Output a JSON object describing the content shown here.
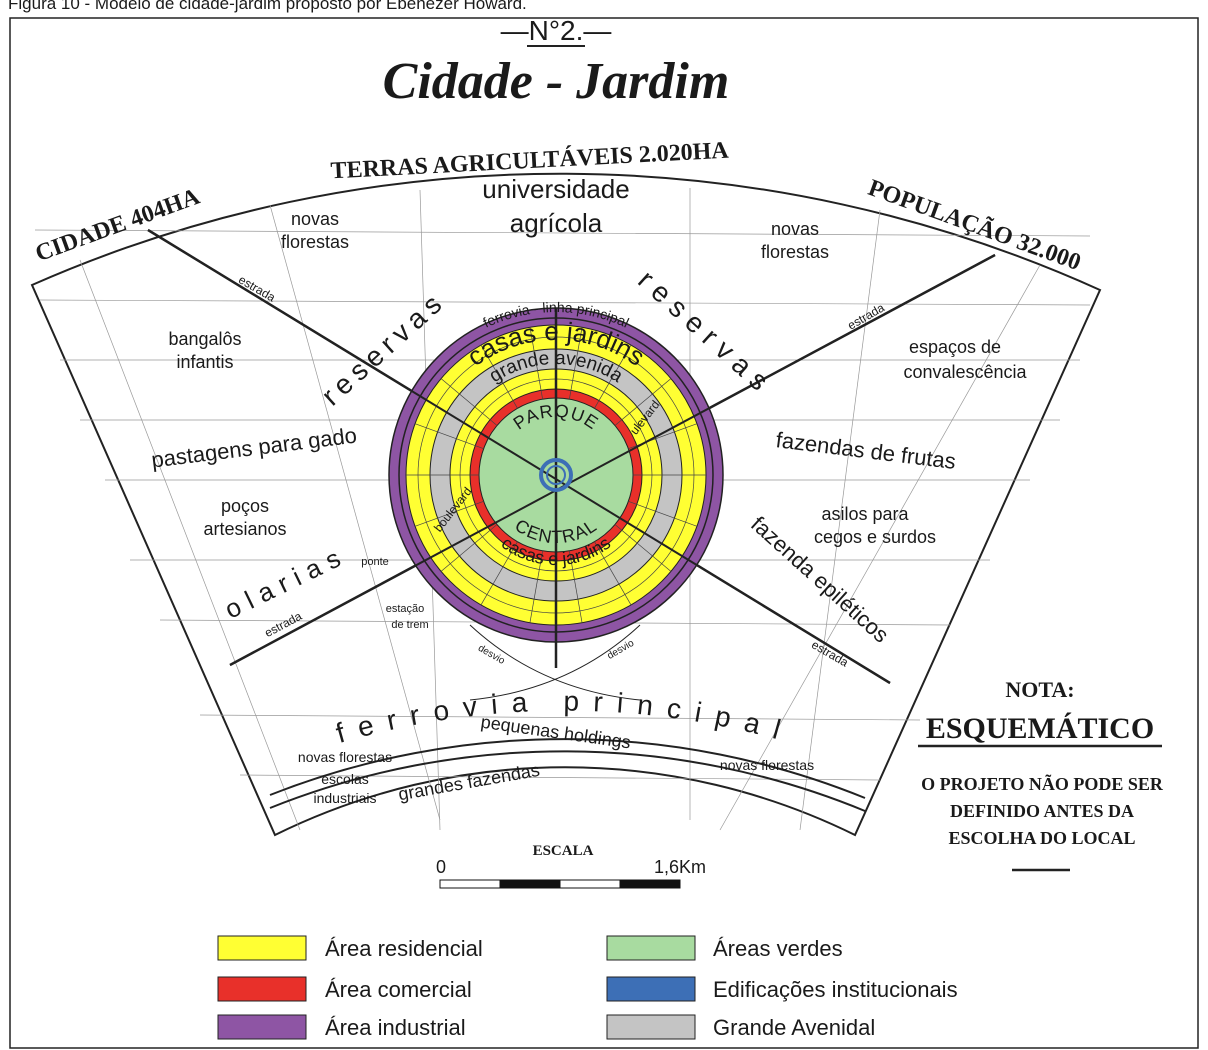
{
  "caption": "Figura 10 - Modelo de cidade-jardim proposto por Ebenezer Howard.",
  "number": "—N°2.—",
  "title": "Cidade - Jardim",
  "header": {
    "agri": "TERRAS AGRICULTÁVEIS 2.020HA",
    "cidade": "CIDADE 404HA",
    "populacao": "POPULAÇÃO 32.000"
  },
  "labels": [
    "universidade",
    "agrícola",
    "novas",
    "florestas",
    "novas",
    "florestas",
    "bangalôs",
    "infantis",
    "espaços de",
    "convalescência",
    "pastagens para gado",
    "fazendas de frutas",
    "poços",
    "artesianos",
    "asilos para",
    "cegos e surdos",
    "olarias",
    "reservas",
    "reservas",
    "fazenda epiléticos",
    "estrada",
    "estrada",
    "estrada",
    "estrada",
    "ponte",
    "estação",
    "de trem",
    "desvio",
    "desvio",
    "ferrovia principal",
    "pequenas holdings",
    "novas florestas",
    "escolas",
    "industriais",
    "grandes fazendas",
    "novas florestas",
    "ferrovia - linha principal",
    "casas e jardins",
    "grande avenida",
    "PARQUE",
    "CENTRAL",
    "casas e jardins",
    "boulevard",
    "ulevard"
  ],
  "note": {
    "title": "NOTA:",
    "heading": "ESQUEMÁTICO",
    "lines": [
      "O PROJETO NÃO PODE SER",
      "DEFINIDO ANTES DA",
      "ESCOLHA DO LOCAL"
    ]
  },
  "scale": {
    "title": "ESCALA",
    "start": "0",
    "end": "1,6Km"
  },
  "legend": [
    {
      "label": "Área residencial",
      "color": "#ffff33"
    },
    {
      "label": "Área comercial",
      "color": "#e8302a"
    },
    {
      "label": "Área industrial",
      "color": "#8e55a4"
    },
    {
      "label": "Áreas verdes",
      "color": "#a8dba0"
    },
    {
      "label": "Edificações institucionais",
      "color": "#3d6fb6"
    },
    {
      "label": "Grande Avenidal",
      "color": "#c4c4c4"
    }
  ]
}
